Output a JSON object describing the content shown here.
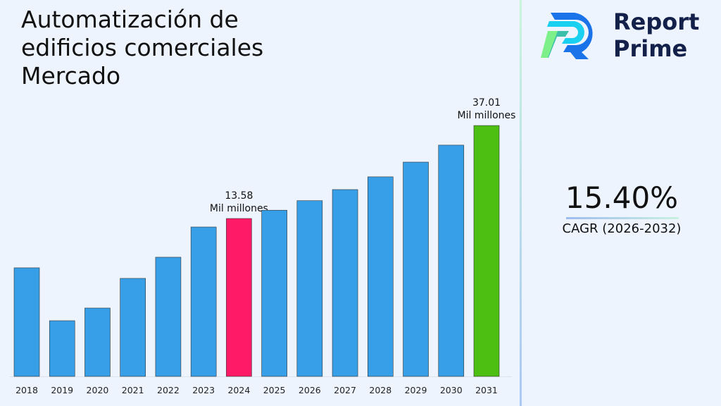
{
  "title": "Automatización de edificios comerciales Mercado",
  "brand": {
    "line1": "Report",
    "line2": "Prime"
  },
  "cagr": {
    "value": "15.40%",
    "label": "CAGR (2026-2032)"
  },
  "colors": {
    "default": "#379fe8",
    "highlight_2024": "#fe1a67",
    "highlight_2031": "#4cbf12"
  },
  "chart_data": {
    "type": "bar",
    "categories": [
      "2018",
      "2019",
      "2020",
      "2021",
      "2022",
      "2023",
      "2024",
      "2025",
      "2026",
      "2027",
      "2028",
      "2029",
      "2030",
      "2031"
    ],
    "values": [
      9.34,
      4.79,
      5.88,
      8.43,
      10.25,
      12.85,
      13.58,
      15.67,
      18.08,
      20.87,
      24.08,
      27.79,
      32.07,
      37.01
    ],
    "data_labels": [
      {
        "category": "2024",
        "text1": "13.58",
        "text2": "Mil millones"
      },
      {
        "category": "2031",
        "text1": "37.01",
        "text2": "Mil millones"
      }
    ],
    "title": "Automatización de edificios comerciales Mercado",
    "xlabel": "",
    "ylabel": "",
    "grid": false
  }
}
